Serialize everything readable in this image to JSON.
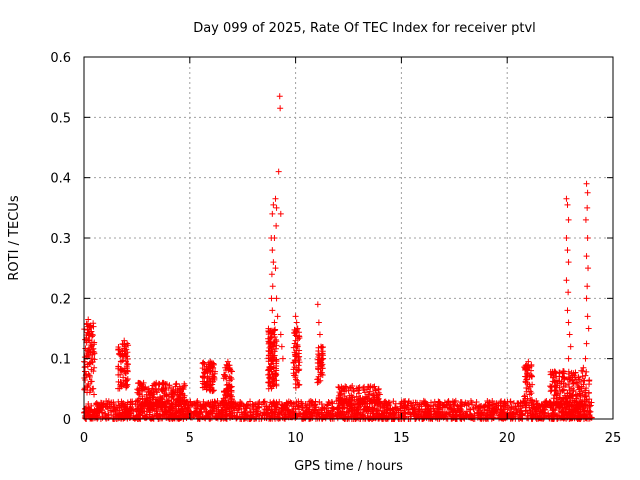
{
  "chart_data": {
    "type": "scatter",
    "title": "Day 099 of 2025, Rate Of TEC Index for receiver ptvl",
    "xlabel": "GPS time / hours",
    "ylabel": "ROTI / TECUs",
    "xlim": [
      0,
      25
    ],
    "ylim": [
      0,
      0.6
    ],
    "x_ticks": [
      "0",
      "5",
      "10",
      "15",
      "20",
      "25"
    ],
    "y_ticks": [
      "0",
      "0.1",
      "0.2",
      "0.3",
      "0.4",
      "0.5",
      "0.6"
    ],
    "x_tick_values": [
      0,
      5,
      10,
      15,
      20,
      25
    ],
    "y_tick_values": [
      0,
      0.1,
      0.2,
      0.3,
      0.4,
      0.5,
      0.6
    ],
    "grid": true,
    "marker": "+",
    "series": [
      {
        "name": "ROTI",
        "color": "#ff0000",
        "background_band": {
          "x_range": [
            0,
            24
          ],
          "y_range": [
            0,
            0.03
          ]
        },
        "segments": [
          {
            "x_start": 0.0,
            "x_end": 0.5,
            "y_mean": 0.1,
            "y_spread": 0.06,
            "count": 30
          },
          {
            "x_start": 1.6,
            "x_end": 2.1,
            "y_mean": 0.09,
            "y_spread": 0.04,
            "count": 25
          },
          {
            "x_start": 2.5,
            "x_end": 4.8,
            "y_mean": 0.04,
            "y_spread": 0.02,
            "count": 60
          },
          {
            "x_start": 5.6,
            "x_end": 6.2,
            "y_mean": 0.07,
            "y_spread": 0.025,
            "count": 30
          },
          {
            "x_start": 6.6,
            "x_end": 7.0,
            "y_mean": 0.06,
            "y_spread": 0.03,
            "count": 20
          },
          {
            "x_start": 8.7,
            "x_end": 9.1,
            "y_mean": 0.1,
            "y_spread": 0.05,
            "count": 40
          },
          {
            "x_start": 9.9,
            "x_end": 10.2,
            "y_mean": 0.1,
            "y_spread": 0.05,
            "count": 20
          },
          {
            "x_start": 11.0,
            "x_end": 11.3,
            "y_mean": 0.09,
            "y_spread": 0.03,
            "count": 15
          },
          {
            "x_start": 12.0,
            "x_end": 14.0,
            "y_mean": 0.04,
            "y_spread": 0.015,
            "count": 40
          },
          {
            "x_start": 20.8,
            "x_end": 21.2,
            "y_mean": 0.06,
            "y_spread": 0.03,
            "count": 15
          },
          {
            "x_start": 22.0,
            "x_end": 23.9,
            "y_mean": 0.05,
            "y_spread": 0.03,
            "count": 60
          }
        ],
        "points": [
          [
            8.95,
            0.355
          ],
          [
            8.9,
            0.34
          ],
          [
            8.85,
            0.3
          ],
          [
            8.9,
            0.28
          ],
          [
            8.95,
            0.26
          ],
          [
            8.88,
            0.24
          ],
          [
            8.92,
            0.22
          ],
          [
            8.86,
            0.2
          ],
          [
            8.9,
            0.18
          ],
          [
            9.0,
            0.16
          ],
          [
            9.05,
            0.365
          ],
          [
            9.1,
            0.35
          ],
          [
            9.08,
            0.32
          ],
          [
            9.0,
            0.3
          ],
          [
            9.05,
            0.25
          ],
          [
            9.1,
            0.2
          ],
          [
            9.15,
            0.17
          ],
          [
            9.2,
            0.41
          ],
          [
            9.25,
            0.535
          ],
          [
            9.27,
            0.515
          ],
          [
            9.3,
            0.34
          ],
          [
            9.3,
            0.14
          ],
          [
            9.35,
            0.12
          ],
          [
            9.4,
            0.1
          ],
          [
            10.0,
            0.17
          ],
          [
            10.05,
            0.16
          ],
          [
            10.1,
            0.15
          ],
          [
            10.0,
            0.13
          ],
          [
            10.1,
            0.12
          ],
          [
            11.05,
            0.19
          ],
          [
            11.1,
            0.16
          ],
          [
            11.15,
            0.14
          ],
          [
            11.2,
            0.12
          ],
          [
            11.3,
            0.1
          ],
          [
            0.2,
            0.165
          ],
          [
            0.3,
            0.155
          ],
          [
            0.35,
            0.145
          ],
          [
            0.25,
            0.13
          ],
          [
            1.9,
            0.13
          ],
          [
            1.95,
            0.12
          ],
          [
            2.0,
            0.115
          ],
          [
            5.9,
            0.09
          ],
          [
            6.8,
            0.095
          ],
          [
            21.0,
            0.095
          ],
          [
            21.05,
            0.085
          ],
          [
            22.8,
            0.365
          ],
          [
            22.85,
            0.355
          ],
          [
            22.9,
            0.33
          ],
          [
            22.8,
            0.3
          ],
          [
            22.85,
            0.28
          ],
          [
            22.9,
            0.26
          ],
          [
            22.8,
            0.23
          ],
          [
            22.88,
            0.21
          ],
          [
            22.85,
            0.18
          ],
          [
            22.9,
            0.16
          ],
          [
            22.95,
            0.14
          ],
          [
            23.0,
            0.12
          ],
          [
            22.9,
            0.1
          ],
          [
            23.75,
            0.39
          ],
          [
            23.8,
            0.375
          ],
          [
            23.78,
            0.35
          ],
          [
            23.72,
            0.33
          ],
          [
            23.8,
            0.3
          ],
          [
            23.75,
            0.27
          ],
          [
            23.82,
            0.25
          ],
          [
            23.78,
            0.22
          ],
          [
            23.75,
            0.2
          ],
          [
            23.8,
            0.17
          ],
          [
            23.85,
            0.15
          ],
          [
            23.75,
            0.125
          ],
          [
            23.7,
            0.1
          ],
          [
            23.6,
            0.085
          ],
          [
            23.5,
            0.08
          ]
        ]
      }
    ]
  }
}
